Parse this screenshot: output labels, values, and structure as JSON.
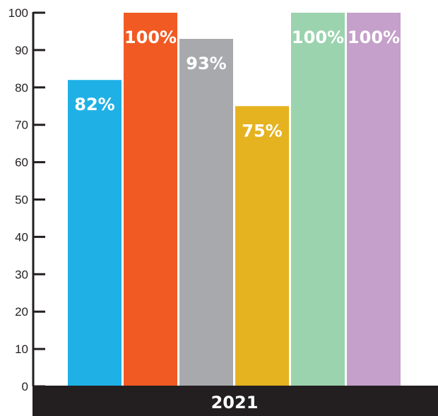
{
  "chart_data": {
    "type": "bar",
    "categories": [
      "2021"
    ],
    "series": [
      {
        "values": [
          82
        ],
        "label": "82%",
        "color": "#1fb1e6"
      },
      {
        "values": [
          100
        ],
        "label": "100%",
        "color": "#f15a22"
      },
      {
        "values": [
          93
        ],
        "label": "93%",
        "color": "#a7a9ac"
      },
      {
        "values": [
          75
        ],
        "label": "75%",
        "color": "#e5b220"
      },
      {
        "values": [
          100
        ],
        "label": "100%",
        "color": "#9bd3ae"
      },
      {
        "values": [
          100
        ],
        "label": "100%",
        "color": "#c4a0ca"
      }
    ],
    "yticks": [
      "0",
      "10",
      "20",
      "30",
      "40",
      "50",
      "60",
      "70",
      "80",
      "90",
      "100"
    ],
    "ylim": [
      0,
      100
    ],
    "grid": false,
    "axis_color": "#231f20"
  }
}
